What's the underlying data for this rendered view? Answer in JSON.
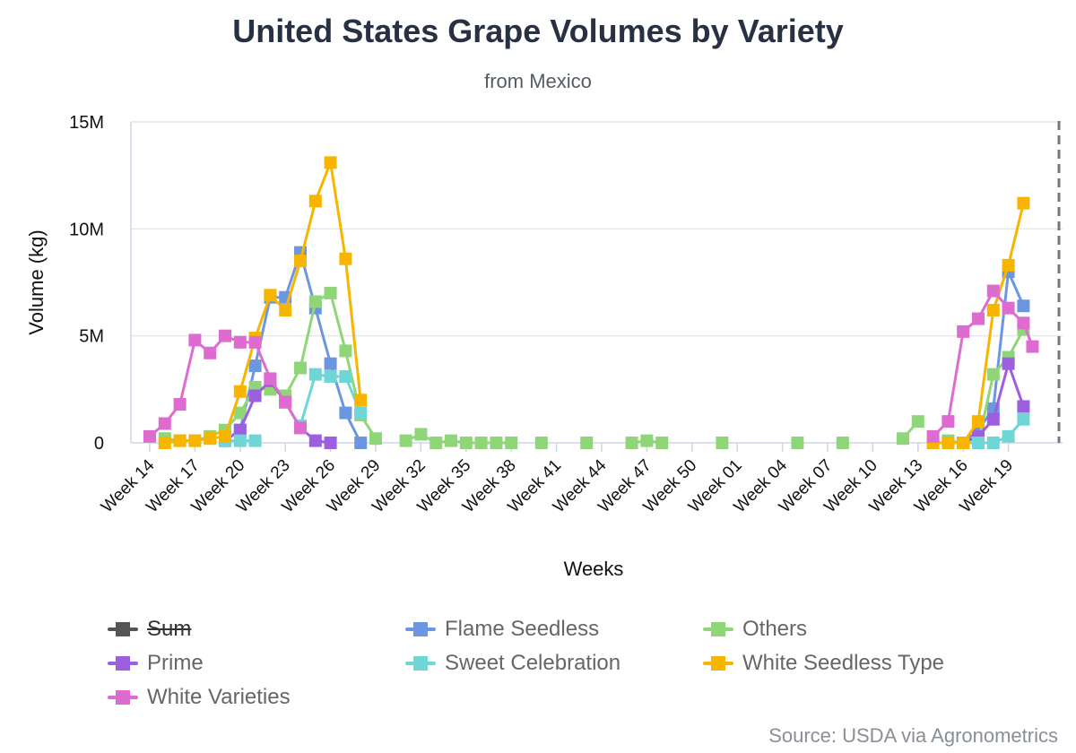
{
  "title": "United States Grape Volumes by Variety",
  "subtitle": "from Mexico",
  "credit": "Source: USDA via Agronometrics",
  "chart_data": {
    "type": "line",
    "title": "United States Grape Volumes by Variety",
    "subtitle": "from Mexico",
    "xlabel": "Weeks",
    "ylabel": "Volume (kg)",
    "ylim": [
      0,
      15000000
    ],
    "y_ticks": [
      "0",
      "5M",
      "10M",
      "15M"
    ],
    "x_tick_labels": [
      "Week 14",
      "Week 17",
      "Week 20",
      "Week 23",
      "Week 26",
      "Week 29",
      "Week 32",
      "Week 35",
      "Week 38",
      "Week 41",
      "Week 44",
      "Week 47",
      "Week 50",
      "Week 01",
      "Week 04",
      "Week 07",
      "Week 10",
      "Week 13",
      "Week 16",
      "Week 19"
    ],
    "grid": "horizontal",
    "legend_position": "bottom",
    "x_range": [
      0,
      58
    ],
    "series": [
      {
        "name": "Sum",
        "color": "#555555",
        "hidden": true,
        "points": []
      },
      {
        "name": "Flame Seedless",
        "color": "#6c97e0",
        "points": [
          [
            5,
            100000
          ],
          [
            6,
            600000
          ],
          [
            7,
            3600000
          ],
          [
            8,
            6800000
          ],
          [
            9,
            6800000
          ],
          [
            10,
            8900000
          ],
          [
            11,
            6300000
          ],
          [
            12,
            3700000
          ],
          [
            13,
            1400000
          ],
          [
            14,
            0
          ],
          [
            54,
            0
          ],
          [
            55,
            600000
          ],
          [
            56,
            1600000
          ],
          [
            57,
            8000000
          ],
          [
            58,
            6400000
          ]
        ]
      },
      {
        "name": "Others",
        "color": "#8fd679",
        "points": [
          [
            1,
            200000
          ],
          [
            2,
            100000
          ],
          [
            3,
            100000
          ],
          [
            4,
            300000
          ],
          [
            5,
            600000
          ],
          [
            6,
            1400000
          ],
          [
            7,
            2600000
          ],
          [
            8,
            2500000
          ],
          [
            9,
            2200000
          ],
          [
            10,
            3500000
          ],
          [
            11,
            6600000
          ],
          [
            12,
            7000000
          ],
          [
            13,
            4300000
          ],
          [
            14,
            1300000
          ],
          [
            15,
            200000
          ],
          [
            17,
            100000
          ],
          [
            18,
            400000
          ],
          [
            19,
            0
          ],
          [
            20,
            100000
          ],
          [
            21,
            0
          ],
          [
            22,
            0
          ],
          [
            23,
            0
          ],
          [
            24,
            0
          ],
          [
            26,
            0
          ],
          [
            29,
            0
          ],
          [
            32,
            0
          ],
          [
            33,
            100000
          ],
          [
            34,
            0
          ],
          [
            38,
            0
          ],
          [
            43,
            0
          ],
          [
            46,
            0
          ],
          [
            50,
            200000
          ],
          [
            51,
            1000000
          ],
          [
            53,
            100000
          ],
          [
            54,
            0
          ],
          [
            55,
            0
          ],
          [
            56,
            3200000
          ],
          [
            57,
            4000000
          ],
          [
            58,
            5300000
          ]
        ]
      },
      {
        "name": "Prime",
        "color": "#9b5fe0",
        "points": [
          [
            5,
            100000
          ],
          [
            6,
            600000
          ],
          [
            7,
            2200000
          ],
          [
            8,
            2900000
          ],
          [
            9,
            1900000
          ],
          [
            10,
            700000
          ],
          [
            11,
            100000
          ],
          [
            12,
            0
          ],
          [
            54,
            0
          ],
          [
            55,
            300000
          ],
          [
            56,
            1100000
          ],
          [
            57,
            3700000
          ],
          [
            58,
            1700000
          ]
        ]
      },
      {
        "name": "Sweet Celebration",
        "color": "#6fd6d6",
        "points": [
          [
            5,
            100000
          ],
          [
            6,
            100000
          ],
          [
            7,
            100000
          ],
          [
            10,
            800000
          ],
          [
            11,
            3200000
          ],
          [
            12,
            3100000
          ],
          [
            13,
            3100000
          ],
          [
            14,
            1400000
          ],
          [
            55,
            0
          ],
          [
            56,
            0
          ],
          [
            57,
            300000
          ],
          [
            58,
            1100000
          ]
        ]
      },
      {
        "name": "White Seedless Type",
        "color": "#f7b500",
        "points": [
          [
            1,
            0
          ],
          [
            2,
            100000
          ],
          [
            3,
            100000
          ],
          [
            4,
            200000
          ],
          [
            5,
            300000
          ],
          [
            6,
            2400000
          ],
          [
            7,
            4900000
          ],
          [
            8,
            6900000
          ],
          [
            9,
            6200000
          ],
          [
            10,
            8500000
          ],
          [
            11,
            11300000
          ],
          [
            12,
            13100000
          ],
          [
            13,
            8600000
          ],
          [
            14,
            2000000
          ],
          [
            52,
            0
          ],
          [
            53,
            0
          ],
          [
            54,
            0
          ],
          [
            55,
            1000000
          ],
          [
            56,
            6200000
          ],
          [
            57,
            8300000
          ],
          [
            58,
            11200000
          ]
        ]
      },
      {
        "name": "White Varieties",
        "color": "#de6cd0",
        "points": [
          [
            0,
            300000
          ],
          [
            1,
            900000
          ],
          [
            2,
            1800000
          ],
          [
            3,
            4800000
          ],
          [
            4,
            4200000
          ],
          [
            5,
            5000000
          ],
          [
            6,
            4700000
          ],
          [
            7,
            4700000
          ],
          [
            8,
            3000000
          ],
          [
            9,
            1900000
          ],
          [
            10,
            700000
          ],
          [
            52,
            300000
          ],
          [
            53,
            1000000
          ],
          [
            54,
            5200000
          ],
          [
            55,
            5800000
          ],
          [
            56,
            7100000
          ],
          [
            57,
            6300000
          ],
          [
            58,
            5600000
          ],
          [
            58.6,
            4500000
          ]
        ]
      }
    ]
  }
}
